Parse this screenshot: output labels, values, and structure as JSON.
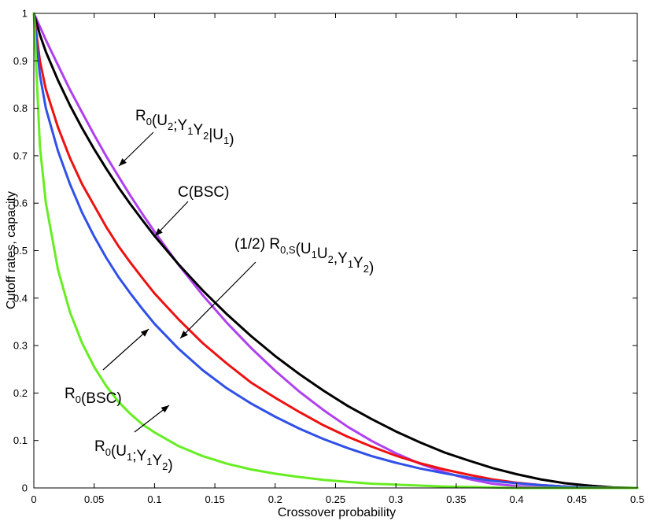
{
  "chart_data": {
    "type": "line",
    "title": "",
    "xlabel": "Crossover probability",
    "ylabel": "Cutoff rates, capacity",
    "xlim": [
      0,
      0.5
    ],
    "ylim": [
      0,
      1
    ],
    "grid": false,
    "x_ticks": [
      "0",
      "0.05",
      "0.1",
      "0.15",
      "0.2",
      "0.25",
      "0.3",
      "0.35",
      "0.4",
      "0.45",
      "0.5"
    ],
    "y_ticks": [
      "0",
      "0.1",
      "0.2",
      "0.3",
      "0.4",
      "0.5",
      "0.6",
      "0.7",
      "0.8",
      "0.9",
      "1"
    ],
    "x": [
      0,
      0.005,
      0.01,
      0.02,
      0.03,
      0.04,
      0.05,
      0.06,
      0.07,
      0.08,
      0.09,
      0.1,
      0.12,
      0.14,
      0.16,
      0.18,
      0.2,
      0.22,
      0.24,
      0.26,
      0.28,
      0.3,
      0.32,
      0.34,
      0.36,
      0.38,
      0.4,
      0.42,
      0.44,
      0.46,
      0.48,
      0.5
    ],
    "series": [
      {
        "id": "r0-u2",
        "color": "#b040f0",
        "label": {
          "parts": [
            [
              "R",
              ""
            ],
            [
              "0",
              "sub"
            ],
            [
              "(U",
              ""
            ],
            [
              "2",
              "sub"
            ],
            [
              ";Y",
              ""
            ],
            [
              "1",
              "sub"
            ],
            [
              "Y",
              ""
            ],
            [
              "2",
              "sub"
            ],
            [
              "|U",
              ""
            ],
            [
              "1",
              "sub"
            ],
            [
              ")",
              ""
            ]
          ]
        },
        "values": [
          1.0,
          0.972,
          0.944,
          0.891,
          0.839,
          0.791,
          0.744,
          0.699,
          0.657,
          0.616,
          0.577,
          0.54,
          0.47,
          0.406,
          0.348,
          0.295,
          0.247,
          0.203,
          0.164,
          0.129,
          0.099,
          0.073,
          0.051,
          0.033,
          0.019,
          0.009,
          0.004,
          0.001,
          0.0,
          0.0,
          0.0,
          0.0
        ]
      },
      {
        "id": "capacity",
        "color": "#000000",
        "label": {
          "parts": [
            [
              "C(BSC)",
              ""
            ]
          ]
        },
        "values": [
          1.0,
          0.955,
          0.919,
          0.859,
          0.806,
          0.758,
          0.714,
          0.673,
          0.634,
          0.598,
          0.564,
          0.531,
          0.471,
          0.416,
          0.366,
          0.32,
          0.278,
          0.24,
          0.205,
          0.173,
          0.145,
          0.119,
          0.096,
          0.075,
          0.058,
          0.042,
          0.029,
          0.018,
          0.01,
          0.005,
          0.001,
          0.0
        ]
      },
      {
        "id": "r0s-half",
        "color": "#ee1111",
        "label": {
          "parts": [
            [
              "(1/2) R",
              ""
            ],
            [
              "0,S",
              "sub"
            ],
            [
              "(U",
              ""
            ],
            [
              "1",
              "sub"
            ],
            [
              "U",
              ""
            ],
            [
              "2",
              "sub"
            ],
            [
              ",Y",
              ""
            ],
            [
              "1",
              "sub"
            ],
            [
              "Y",
              ""
            ],
            [
              "2",
              "sub"
            ],
            [
              ")",
              ""
            ]
          ]
        },
        "values": [
          1.0,
          0.9,
          0.84,
          0.76,
          0.695,
          0.64,
          0.595,
          0.55,
          0.51,
          0.475,
          0.442,
          0.41,
          0.355,
          0.305,
          0.262,
          0.222,
          0.19,
          0.16,
          0.132,
          0.108,
          0.087,
          0.068,
          0.052,
          0.039,
          0.028,
          0.018,
          0.011,
          0.006,
          0.003,
          0.001,
          0.0,
          0.0
        ]
      },
      {
        "id": "r0-bsc",
        "color": "#3050e8",
        "label": {
          "parts": [
            [
              "R",
              ""
            ],
            [
              "0",
              "sub"
            ],
            [
              "(BSC)",
              ""
            ]
          ]
        },
        "values": [
          1.0,
          0.87,
          0.8,
          0.71,
          0.64,
          0.58,
          0.53,
          0.485,
          0.445,
          0.41,
          0.377,
          0.346,
          0.293,
          0.248,
          0.21,
          0.178,
          0.15,
          0.125,
          0.103,
          0.084,
          0.067,
          0.053,
          0.041,
          0.031,
          0.022,
          0.015,
          0.01,
          0.006,
          0.003,
          0.001,
          0.0,
          0.0
        ]
      },
      {
        "id": "r0-u1",
        "color": "#66ee22",
        "label": {
          "parts": [
            [
              "R",
              ""
            ],
            [
              "0",
              "sub"
            ],
            [
              "(U",
              ""
            ],
            [
              "1",
              "sub"
            ],
            [
              ";Y",
              ""
            ],
            [
              "1",
              "sub"
            ],
            [
              "Y",
              ""
            ],
            [
              "2",
              "sub"
            ],
            [
              ")",
              ""
            ]
          ]
        },
        "values": [
          1.0,
          0.72,
          0.6,
          0.46,
          0.37,
          0.305,
          0.255,
          0.215,
          0.182,
          0.156,
          0.134,
          0.117,
          0.088,
          0.067,
          0.051,
          0.039,
          0.03,
          0.023,
          0.017,
          0.013,
          0.009,
          0.007,
          0.005,
          0.003,
          0.002,
          0.001,
          0.0,
          0.0,
          0.0,
          0.0,
          0.0,
          0.0
        ]
      }
    ]
  }
}
